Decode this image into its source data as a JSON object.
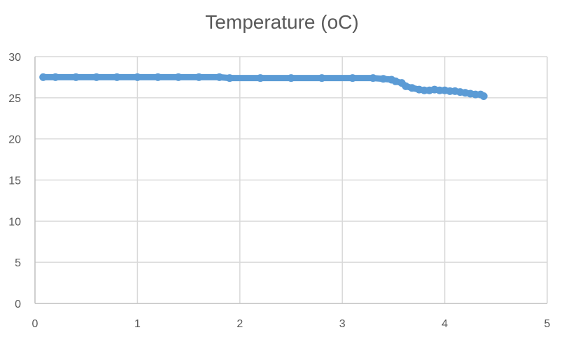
{
  "chart_data": {
    "type": "scatter",
    "title": "Temperature (oC)",
    "xlabel": "",
    "ylabel": "",
    "xlim": [
      0,
      5
    ],
    "ylim": [
      0,
      30
    ],
    "x_ticks": [
      "0",
      "1",
      "2",
      "3",
      "4",
      "5"
    ],
    "y_ticks": [
      "0",
      "5",
      "10",
      "15",
      "20",
      "25",
      "30"
    ],
    "grid": true,
    "legend": "none",
    "series_color": "#5B9BD5",
    "series": [
      {
        "x": [
          0.08,
          0.2,
          0.4,
          0.6,
          0.8,
          1.0,
          1.2,
          1.4,
          1.6,
          1.8,
          1.9,
          2.2,
          2.5,
          2.8,
          3.1,
          3.3,
          3.4,
          3.48,
          3.52,
          3.58,
          3.62,
          3.68,
          3.75,
          3.8,
          3.85,
          3.9,
          3.95,
          4.0,
          4.05,
          4.1,
          4.15,
          4.2,
          4.25,
          4.3,
          4.35,
          4.38
        ],
        "y": [
          27.5,
          27.5,
          27.5,
          27.5,
          27.5,
          27.5,
          27.5,
          27.5,
          27.5,
          27.5,
          27.4,
          27.4,
          27.4,
          27.4,
          27.4,
          27.4,
          27.3,
          27.2,
          27.0,
          26.8,
          26.4,
          26.2,
          26.0,
          25.9,
          25.9,
          26.0,
          25.9,
          25.9,
          25.8,
          25.8,
          25.7,
          25.6,
          25.5,
          25.4,
          25.4,
          25.2
        ]
      }
    ]
  }
}
